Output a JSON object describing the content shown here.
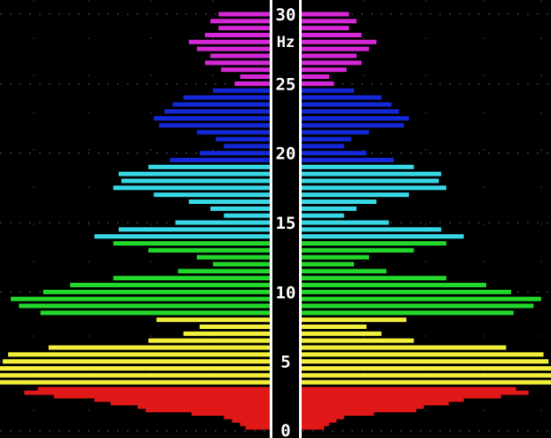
{
  "chart_data": {
    "type": "bar",
    "orientation": "horizontal-mirrored",
    "title": "",
    "ylabel": "Hz",
    "ylim": [
      0,
      30
    ],
    "y_ticks": [
      "0",
      "5",
      "10",
      "15",
      "20",
      "25",
      "30"
    ],
    "grid": true,
    "legend": "none",
    "series": [
      {
        "color": "#e01818",
        "bins": [
          {
            "hz": 0.25,
            "value": 0.09
          },
          {
            "hz": 0.5,
            "value": 0.11
          },
          {
            "hz": 0.75,
            "value": 0.14
          },
          {
            "hz": 1.0,
            "value": 0.17
          },
          {
            "hz": 1.25,
            "value": 0.29
          },
          {
            "hz": 1.5,
            "value": 0.46
          },
          {
            "hz": 1.75,
            "value": 0.49
          },
          {
            "hz": 2.0,
            "value": 0.59
          },
          {
            "hz": 2.25,
            "value": 0.65
          },
          {
            "hz": 2.5,
            "value": 0.8
          },
          {
            "hz": 2.75,
            "value": 0.91
          },
          {
            "hz": 3.0,
            "value": 0.86
          }
        ]
      },
      {
        "color": "#f2f03a",
        "bins": [
          {
            "hz": 3.5,
            "value": 1.0
          },
          {
            "hz": 4.0,
            "value": 1.0
          },
          {
            "hz": 4.5,
            "value": 1.0
          },
          {
            "hz": 5.0,
            "value": 0.99
          },
          {
            "hz": 5.5,
            "value": 0.97
          },
          {
            "hz": 6.0,
            "value": 0.82
          },
          {
            "hz": 6.5,
            "value": 0.45
          },
          {
            "hz": 7.0,
            "value": 0.32
          },
          {
            "hz": 7.5,
            "value": 0.26
          },
          {
            "hz": 8.0,
            "value": 0.42
          }
        ]
      },
      {
        "color": "#22d82a",
        "bins": [
          {
            "hz": 8.5,
            "value": 0.85
          },
          {
            "hz": 9.0,
            "value": 0.93
          },
          {
            "hz": 9.5,
            "value": 0.96
          },
          {
            "hz": 10.0,
            "value": 0.84
          },
          {
            "hz": 10.5,
            "value": 0.74
          },
          {
            "hz": 11.0,
            "value": 0.58
          },
          {
            "hz": 11.5,
            "value": 0.34
          },
          {
            "hz": 12.0,
            "value": 0.21
          },
          {
            "hz": 12.5,
            "value": 0.27
          },
          {
            "hz": 13.0,
            "value": 0.45
          },
          {
            "hz": 13.5,
            "value": 0.58
          }
        ]
      },
      {
        "color": "#38d8e6",
        "bins": [
          {
            "hz": 14.0,
            "value": 0.65
          },
          {
            "hz": 14.5,
            "value": 0.56
          },
          {
            "hz": 15.0,
            "value": 0.35
          },
          {
            "hz": 15.5,
            "value": 0.17
          },
          {
            "hz": 16.0,
            "value": 0.22
          },
          {
            "hz": 16.5,
            "value": 0.3
          },
          {
            "hz": 17.0,
            "value": 0.43
          },
          {
            "hz": 17.5,
            "value": 0.58
          },
          {
            "hz": 18.0,
            "value": 0.55
          },
          {
            "hz": 18.5,
            "value": 0.56
          },
          {
            "hz": 19.0,
            "value": 0.45
          }
        ]
      },
      {
        "color": "#1428d8",
        "bins": [
          {
            "hz": 19.5,
            "value": 0.37
          },
          {
            "hz": 20.0,
            "value": 0.26
          },
          {
            "hz": 20.5,
            "value": 0.17
          },
          {
            "hz": 21.0,
            "value": 0.2
          },
          {
            "hz": 21.5,
            "value": 0.27
          },
          {
            "hz": 22.0,
            "value": 0.41
          },
          {
            "hz": 22.5,
            "value": 0.43
          },
          {
            "hz": 23.0,
            "value": 0.39
          },
          {
            "hz": 23.5,
            "value": 0.36
          },
          {
            "hz": 24.0,
            "value": 0.32
          },
          {
            "hz": 24.5,
            "value": 0.21
          }
        ]
      },
      {
        "color": "#d628d6",
        "bins": [
          {
            "hz": 25.0,
            "value": 0.13
          },
          {
            "hz": 25.5,
            "value": 0.11
          },
          {
            "hz": 26.0,
            "value": 0.18
          },
          {
            "hz": 26.5,
            "value": 0.24
          },
          {
            "hz": 27.0,
            "value": 0.22
          },
          {
            "hz": 27.5,
            "value": 0.27
          },
          {
            "hz": 28.0,
            "value": 0.3
          },
          {
            "hz": 28.5,
            "value": 0.24
          },
          {
            "hz": 29.0,
            "value": 0.19
          },
          {
            "hz": 29.5,
            "value": 0.22
          },
          {
            "hz": 30.0,
            "value": 0.19
          }
        ]
      }
    ]
  }
}
